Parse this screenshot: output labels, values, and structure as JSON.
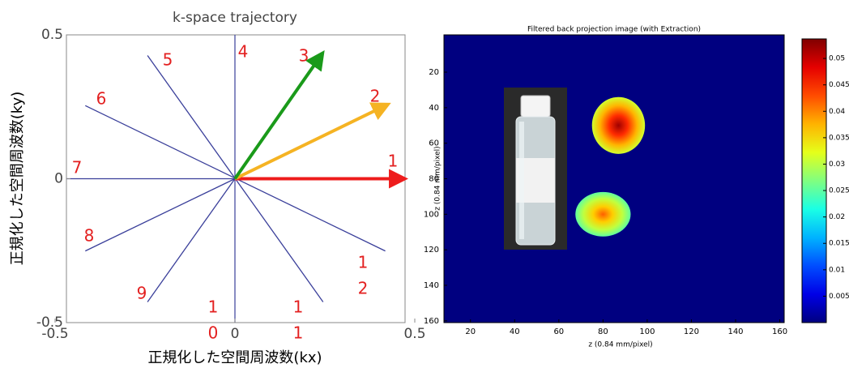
{
  "chart_data": [
    {
      "type": "line",
      "title": "k-space trajectory",
      "xlabel": "正規化した空間周波数(kx)",
      "ylabel": "正規化した空間周波数(ky)",
      "xlim": [
        -0.5,
        0.5
      ],
      "ylim": [
        -0.5,
        0.5
      ],
      "xticks": [
        -0.5,
        0,
        0.5
      ],
      "yticks": [
        -0.5,
        0,
        0.5
      ],
      "line_color": "#3a3f9a",
      "segments": [
        {
          "x": [
            -0.243,
            0.245
          ],
          "y": [
            0.428,
            -0.428
          ]
        },
        {
          "x": [
            -0.416,
            0.418
          ],
          "y": [
            0.254,
            -0.251
          ]
        },
        {
          "x": [
            -0.416,
            0
          ],
          "y": [
            -0.251,
            0
          ]
        },
        {
          "x": [
            -0.243,
            0
          ],
          "y": [
            -0.428,
            0
          ]
        }
      ],
      "arrows": [
        {
          "color": "#ee1c1c",
          "x": [
            0,
            0.464
          ],
          "y": [
            0,
            0
          ]
        },
        {
          "color": "#f5b323",
          "x": [
            0,
            0.418
          ],
          "y": [
            0,
            0.254
          ]
        },
        {
          "color": "#1a9a1a",
          "x": [
            0,
            0.239
          ],
          "y": [
            0,
            0.428
          ]
        }
      ],
      "annotation_color": "#e32020",
      "annotations": [
        [
          "1"
        ],
        [
          "2"
        ],
        [
          "3"
        ],
        [
          "4"
        ],
        [
          "5"
        ],
        [
          "6"
        ],
        [
          "7"
        ],
        [
          "8"
        ],
        [
          "9"
        ],
        [
          "1",
          "0"
        ],
        [
          "1",
          "1"
        ],
        [
          "1",
          "2"
        ]
      ]
    },
    {
      "type": "heatmap",
      "title": "Filtered back projection image (with Extraction)",
      "xlabel": "z (0.84 mm/pixel)",
      "ylabel": "z (0.84 mm/pixel)",
      "xlim": [
        8,
        162
      ],
      "ylim": [
        -1,
        161
      ],
      "xticks": [
        20,
        40,
        60,
        80,
        100,
        120,
        140,
        160
      ],
      "yticks": [
        20,
        40,
        60,
        80,
        100,
        120,
        140,
        160
      ],
      "colormap": "jet",
      "clim": [
        0,
        0.0537
      ],
      "cticks": [
        0.005,
        0.01,
        0.015,
        0.02,
        0.025,
        0.03,
        0.035,
        0.04,
        0.045,
        0.05
      ],
      "blobs": [
        {
          "x": 87,
          "y": 50,
          "rx": 12,
          "ry": 16,
          "peak": 0.052
        },
        {
          "x": 80,
          "y": 100,
          "rx": 12.5,
          "ry": 12.5,
          "peak": 0.042
        }
      ]
    }
  ]
}
